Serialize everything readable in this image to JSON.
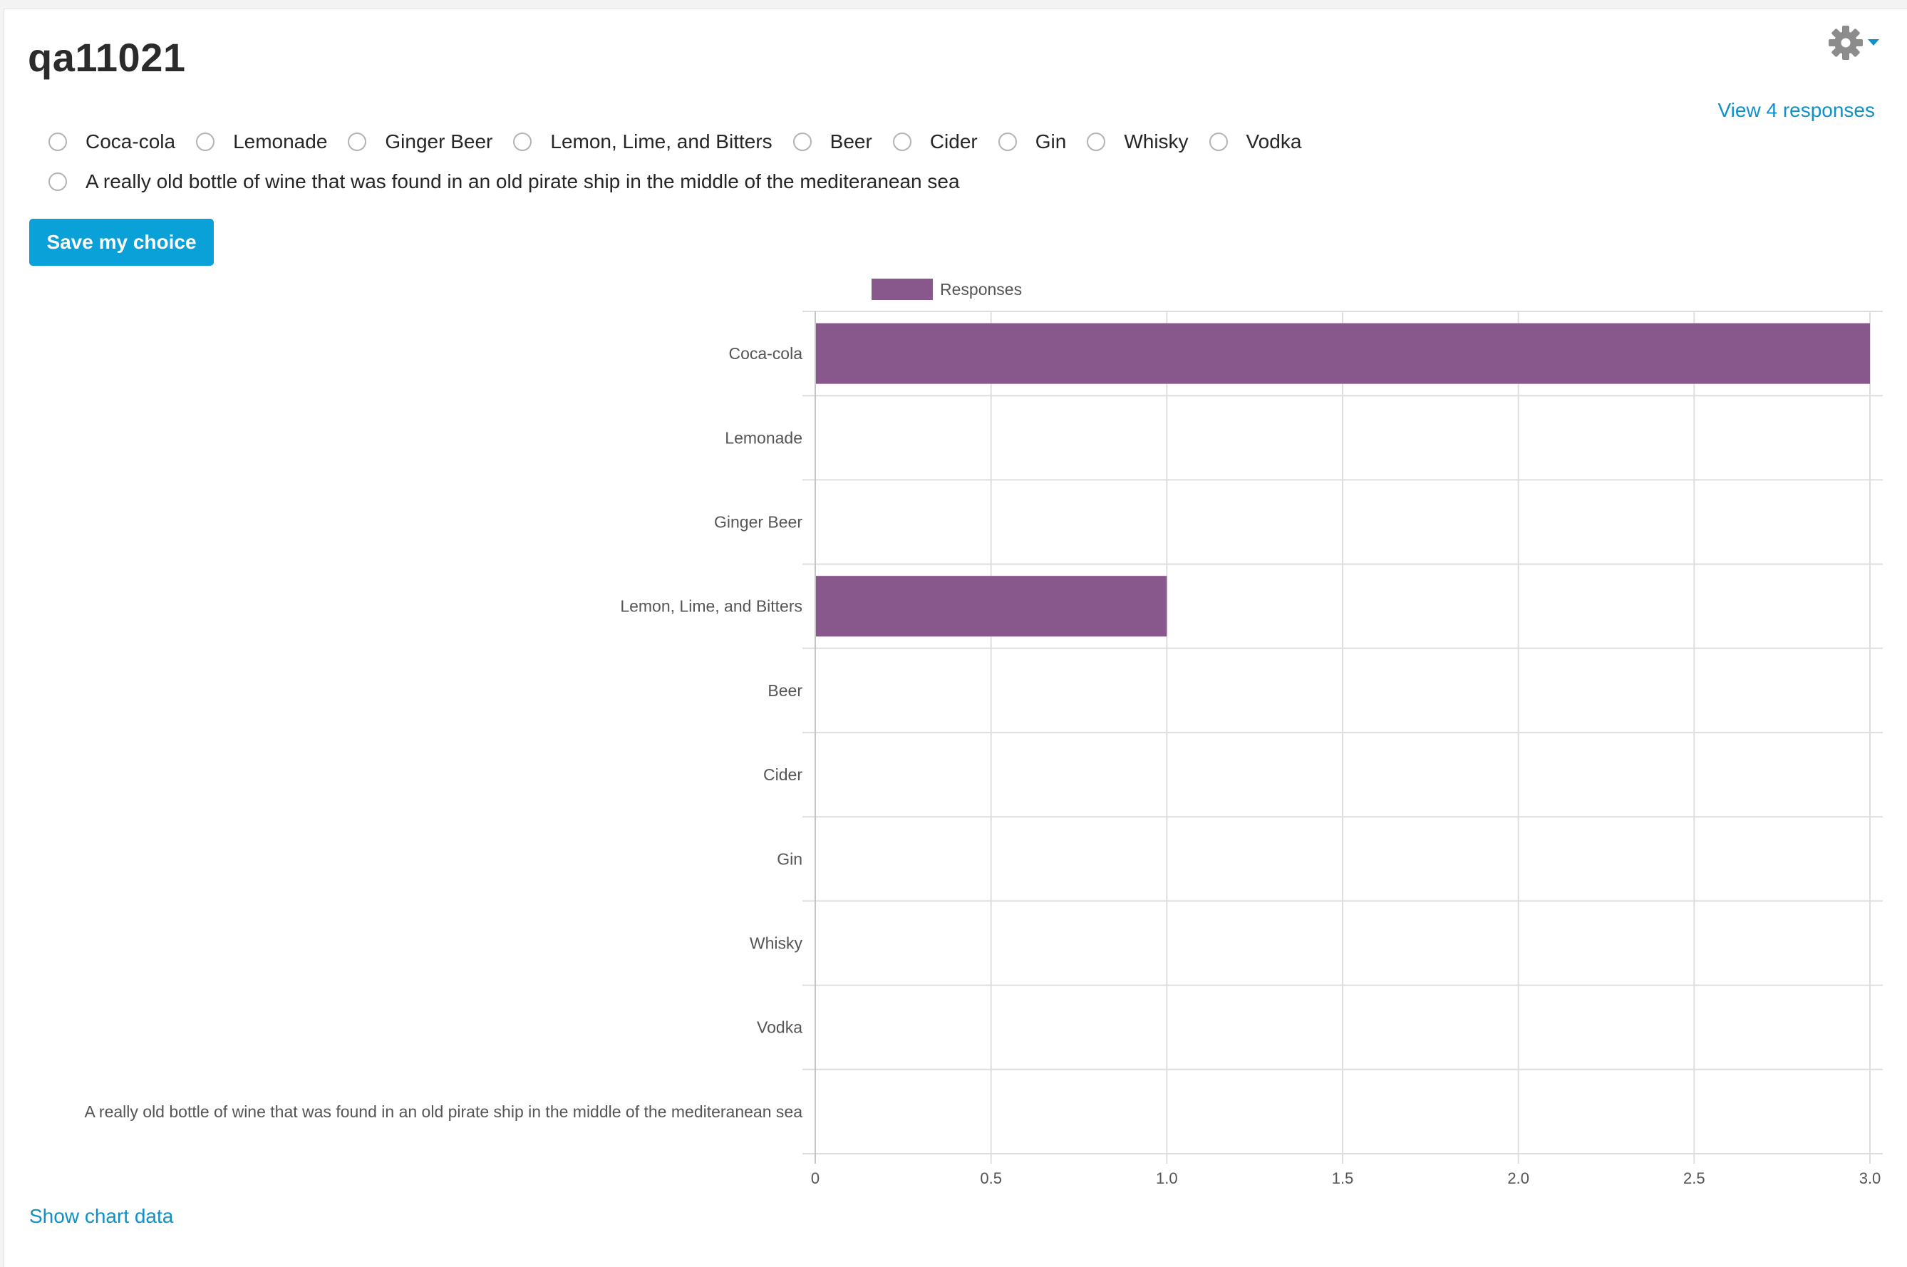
{
  "title": "qa11021",
  "view_responses_link": "View 4 responses",
  "settings_icon": "gear-icon",
  "dropdown_icon": "caret-down-icon",
  "options": [
    "Coca-cola",
    "Lemonade",
    "Ginger Beer",
    "Lemon, Lime, and Bitters",
    "Beer",
    "Cider",
    "Gin",
    "Whisky",
    "Vodka",
    "A really old bottle of wine that was found in an old pirate ship in the middle of the mediteranean sea"
  ],
  "save_button_label": "Save my choice",
  "show_chart_data_link": "Show chart data",
  "colors": {
    "accent": "#0aa1d9",
    "link": "#0f90c9",
    "bar": "#88578c",
    "gear": "#8c8c8c"
  },
  "chart_data": {
    "type": "bar",
    "orientation": "horizontal",
    "categories": [
      "Coca-cola",
      "Lemonade",
      "Ginger Beer",
      "Lemon, Lime, and Bitters",
      "Beer",
      "Cider",
      "Gin",
      "Whisky",
      "Vodka",
      "A really old bottle of wine that was found in an old pirate ship in the middle of the mediteranean sea"
    ],
    "series": [
      {
        "name": "Responses",
        "color": "#88578c",
        "values": [
          3,
          0,
          0,
          1,
          0,
          0,
          0,
          0,
          0,
          0
        ]
      }
    ],
    "xlim": [
      0,
      3
    ],
    "xticks": [
      "0",
      "0.5",
      "1.0",
      "1.5",
      "2.0",
      "2.5",
      "3.0"
    ],
    "grid": true,
    "legend": "top-left"
  }
}
